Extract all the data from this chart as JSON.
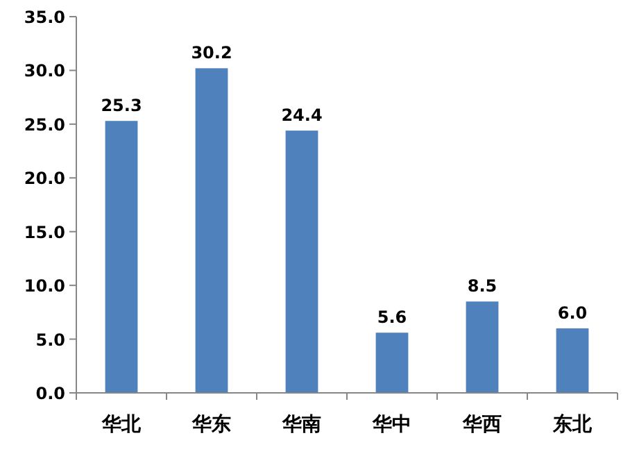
{
  "chart_data": {
    "type": "bar",
    "categories": [
      "华北",
      "华东",
      "华南",
      "华中",
      "华西",
      "东北"
    ],
    "values": [
      25.3,
      30.2,
      24.4,
      5.6,
      8.5,
      6.0
    ],
    "value_labels": [
      "25.3",
      "30.2",
      "24.4",
      "5.6",
      "8.5",
      "6.0"
    ],
    "color": "#4f81bd",
    "ylim": [
      0,
      35
    ],
    "yticks": [
      {
        "value": 0,
        "label": "0.0"
      },
      {
        "value": 5,
        "label": "5.0"
      },
      {
        "value": 10,
        "label": "10.0"
      },
      {
        "value": 15,
        "label": "15.0"
      },
      {
        "value": 20,
        "label": "20.0"
      },
      {
        "value": 25,
        "label": "25.0"
      },
      {
        "value": 30,
        "label": "30.0"
      },
      {
        "value": 35,
        "label": "35.0"
      }
    ]
  }
}
